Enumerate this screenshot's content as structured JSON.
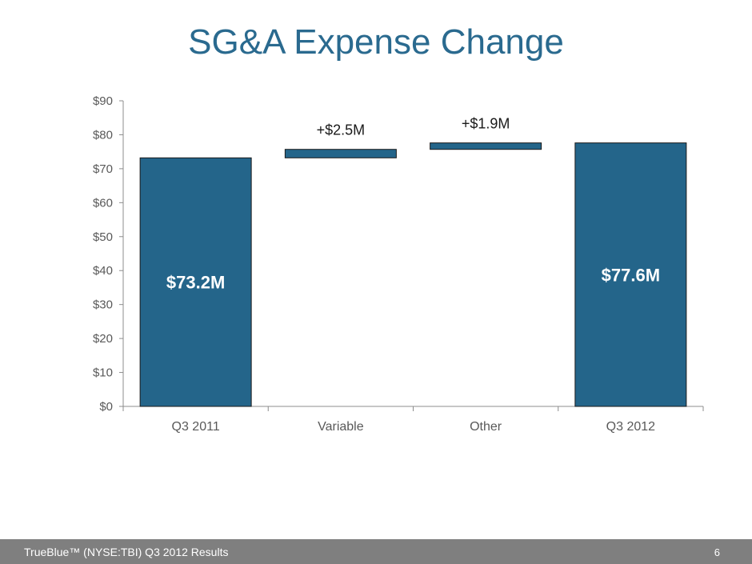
{
  "slide": {
    "title": "SG&A Expense Change"
  },
  "footer": {
    "text": "TrueBlue™ (NYSE:TBI) Q3 2012 Results",
    "page_number": "6"
  },
  "colors": {
    "bar": "#24658a",
    "title": "#2a6a8f",
    "footer": "#7f7f7f"
  },
  "chart_data": {
    "type": "bar",
    "subtype": "waterfall",
    "title": "SG&A Expense Change",
    "categories": [
      "Q3 2011",
      "Variable",
      "Other",
      "Q3 2012"
    ],
    "bars": [
      {
        "category": "Q3 2011",
        "start": 0,
        "end": 73.2,
        "label": "$73.2M",
        "label_position": "inside"
      },
      {
        "category": "Variable",
        "start": 73.2,
        "end": 75.7,
        "label": "+$2.5M",
        "label_position": "above"
      },
      {
        "category": "Other",
        "start": 75.7,
        "end": 77.6,
        "label": "+$1.9M",
        "label_position": "above"
      },
      {
        "category": "Q3 2012",
        "start": 0,
        "end": 77.6,
        "label": "$77.6M",
        "label_position": "inside"
      }
    ],
    "ylim": [
      0,
      90
    ],
    "yticks": [
      0,
      10,
      20,
      30,
      40,
      50,
      60,
      70,
      80,
      90
    ],
    "ytick_labels": [
      "$0",
      "$10",
      "$20",
      "$30",
      "$40",
      "$50",
      "$60",
      "$70",
      "$80",
      "$90"
    ],
    "xlabel": "",
    "ylabel": "",
    "grid": false,
    "legend": false
  }
}
